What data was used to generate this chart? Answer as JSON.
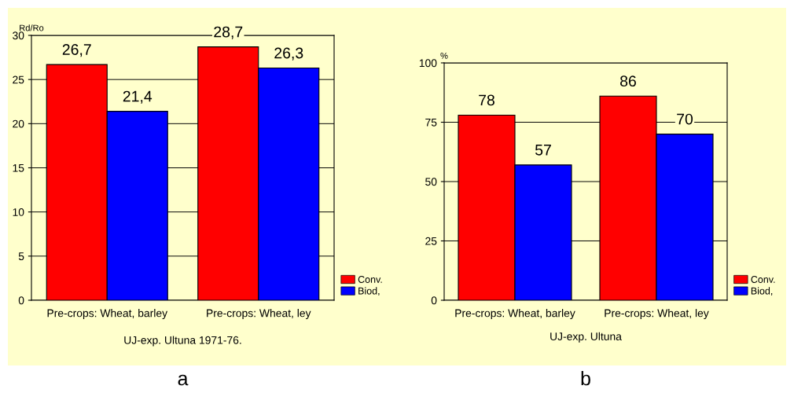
{
  "chart_data": [
    {
      "type": "bar",
      "title": "a",
      "ylabel": "Rd/Ro",
      "annotations": [
        "UJ-exp. Ultuna 1971-76."
      ],
      "categories": [
        "Pre-crops: Wheat, barley",
        "Pre-crops: Wheat, ley"
      ],
      "series": [
        {
          "name": "Conv.",
          "color": "#ff0000",
          "values": [
            26.7,
            28.7
          ],
          "value_labels": [
            "26,7",
            "28,7"
          ]
        },
        {
          "name": "Biod,",
          "color": "#0000ff",
          "values": [
            21.4,
            26.3
          ],
          "value_labels": [
            "21,4",
            "26,3"
          ]
        }
      ],
      "ylim": [
        0,
        30
      ],
      "yticks": [
        0,
        5,
        10,
        15,
        20,
        25,
        30
      ],
      "grid": "y",
      "legend": "bottom right"
    },
    {
      "type": "bar",
      "title": "b",
      "ylabel": "%",
      "annotations": [
        "UJ-exp. Ultuna"
      ],
      "categories": [
        "Pre-crops: Wheat, barley",
        "Pre-crops: Wheat, ley"
      ],
      "series": [
        {
          "name": "Conv.",
          "color": "#ff0000",
          "values": [
            78,
            86
          ]
        },
        {
          "name": "Biod,",
          "color": "#0000ff",
          "values": [
            57,
            70
          ]
        }
      ],
      "ylim": [
        0,
        100
      ],
      "yticks": [
        0,
        25,
        50,
        75,
        100
      ],
      "grid": "y",
      "legend": "bottom right",
      "data_labels": true
    }
  ]
}
